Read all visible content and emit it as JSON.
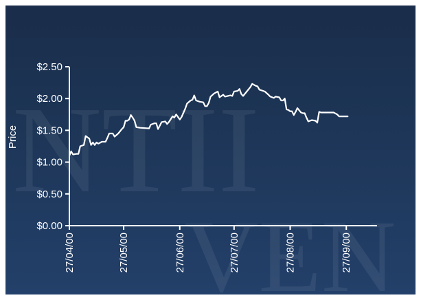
{
  "chart_data": {
    "type": "line",
    "ylabel": "Price",
    "xlabel": "",
    "ylim": [
      0,
      2.5
    ],
    "y_ticks": [
      {
        "value": 2.5,
        "label": "$2.50"
      },
      {
        "value": 2.0,
        "label": "$2.00"
      },
      {
        "value": 1.5,
        "label": "$1.50"
      },
      {
        "value": 1.0,
        "label": "$1.00"
      },
      {
        "value": 0.5,
        "label": "$0.50"
      },
      {
        "value": 0.0,
        "label": "$0.00"
      }
    ],
    "x_ticks": [
      {
        "date": "2000-04-27",
        "label": "27/04/00"
      },
      {
        "date": "2000-05-27",
        "label": "27/05/00"
      },
      {
        "date": "2000-06-27",
        "label": "27/06/00"
      },
      {
        "date": "2000-07-27",
        "label": "27/07/00"
      },
      {
        "date": "2000-08-27",
        "label": "27/08/00"
      },
      {
        "date": "2000-09-27",
        "label": "27/09/00"
      }
    ],
    "xlim": [
      "2000-04-27",
      "2000-10-14"
    ],
    "grid": false,
    "series": [
      {
        "color": "#ffffff",
        "points": [
          [
            "2000-04-27",
            1.1
          ],
          [
            "2000-04-28",
            1.17
          ],
          [
            "2000-04-29",
            1.12
          ],
          [
            "2000-05-01",
            1.13
          ],
          [
            "2000-05-02",
            1.13
          ],
          [
            "2000-05-03",
            1.25
          ],
          [
            "2000-05-05",
            1.27
          ],
          [
            "2000-05-06",
            1.41
          ],
          [
            "2000-05-07",
            1.39
          ],
          [
            "2000-05-08",
            1.37
          ],
          [
            "2000-05-09",
            1.27
          ],
          [
            "2000-05-10",
            1.31
          ],
          [
            "2000-05-11",
            1.27
          ],
          [
            "2000-05-12",
            1.31
          ],
          [
            "2000-05-13",
            1.29
          ],
          [
            "2000-05-15",
            1.32
          ],
          [
            "2000-05-17",
            1.32
          ],
          [
            "2000-05-18",
            1.38
          ],
          [
            "2000-05-19",
            1.45
          ],
          [
            "2000-05-21",
            1.45
          ],
          [
            "2000-05-22",
            1.4
          ],
          [
            "2000-05-24",
            1.45
          ],
          [
            "2000-05-26",
            1.52
          ],
          [
            "2000-05-27",
            1.55
          ],
          [
            "2000-05-28",
            1.65
          ],
          [
            "2000-05-29",
            1.65
          ],
          [
            "2000-05-30",
            1.67
          ],
          [
            "2000-05-31",
            1.74
          ],
          [
            "2000-06-01",
            1.7
          ],
          [
            "2000-06-02",
            1.65
          ],
          [
            "2000-06-03",
            1.55
          ],
          [
            "2000-06-05",
            1.54
          ],
          [
            "2000-06-10",
            1.53
          ],
          [
            "2000-06-11",
            1.59
          ],
          [
            "2000-06-13",
            1.61
          ],
          [
            "2000-06-14",
            1.61
          ],
          [
            "2000-06-15",
            1.52
          ],
          [
            "2000-06-17",
            1.63
          ],
          [
            "2000-06-19",
            1.64
          ],
          [
            "2000-06-20",
            1.6
          ],
          [
            "2000-06-21",
            1.63
          ],
          [
            "2000-06-23",
            1.72
          ],
          [
            "2000-06-24",
            1.7
          ],
          [
            "2000-06-25",
            1.75
          ],
          [
            "2000-06-27",
            1.67
          ],
          [
            "2000-06-28",
            1.71
          ],
          [
            "2000-06-30",
            1.84
          ],
          [
            "2000-07-01",
            1.92
          ],
          [
            "2000-07-03",
            1.97
          ],
          [
            "2000-07-04",
            1.98
          ],
          [
            "2000-07-05",
            2.05
          ],
          [
            "2000-07-06",
            1.97
          ],
          [
            "2000-07-08",
            1.95
          ],
          [
            "2000-07-10",
            1.94
          ],
          [
            "2000-07-11",
            1.88
          ],
          [
            "2000-07-12",
            1.88
          ],
          [
            "2000-07-13",
            1.93
          ],
          [
            "2000-07-14",
            2.03
          ],
          [
            "2000-07-16",
            2.08
          ],
          [
            "2000-07-18",
            2.11
          ],
          [
            "2000-07-19",
            2.02
          ],
          [
            "2000-07-21",
            2.06
          ],
          [
            "2000-07-22",
            2.03
          ],
          [
            "2000-07-25",
            2.05
          ],
          [
            "2000-07-26",
            2.04
          ],
          [
            "2000-07-27",
            2.11
          ],
          [
            "2000-07-29",
            2.12
          ],
          [
            "2000-07-30",
            2.15
          ],
          [
            "2000-07-31",
            2.07
          ],
          [
            "2000-08-01",
            2.04
          ],
          [
            "2000-08-03",
            2.11
          ],
          [
            "2000-08-05",
            2.18
          ],
          [
            "2000-08-06",
            2.23
          ],
          [
            "2000-08-08",
            2.2
          ],
          [
            "2000-08-09",
            2.19
          ],
          [
            "2000-08-10",
            2.14
          ],
          [
            "2000-08-12",
            2.12
          ],
          [
            "2000-08-13",
            2.11
          ],
          [
            "2000-08-15",
            2.06
          ],
          [
            "2000-08-16",
            2.03
          ],
          [
            "2000-08-18",
            2.01
          ],
          [
            "2000-08-19",
            2.03
          ],
          [
            "2000-08-21",
            2.02
          ],
          [
            "2000-08-22",
            1.97
          ],
          [
            "2000-08-23",
            1.97
          ],
          [
            "2000-08-24",
            2.0
          ],
          [
            "2000-08-25",
            1.83
          ],
          [
            "2000-08-26",
            1.82
          ],
          [
            "2000-08-27",
            1.8
          ],
          [
            "2000-08-28",
            1.8
          ],
          [
            "2000-08-29",
            1.74
          ],
          [
            "2000-08-30",
            1.79
          ],
          [
            "2000-08-31",
            1.85
          ],
          [
            "2000-09-02",
            1.78
          ],
          [
            "2000-09-03",
            1.77
          ],
          [
            "2000-09-04",
            1.77
          ],
          [
            "2000-09-05",
            1.7
          ],
          [
            "2000-09-06",
            1.64
          ],
          [
            "2000-09-07",
            1.65
          ],
          [
            "2000-09-08",
            1.66
          ],
          [
            "2000-09-10",
            1.65
          ],
          [
            "2000-09-11",
            1.62
          ],
          [
            "2000-09-12",
            1.79
          ],
          [
            "2000-09-13",
            1.78
          ],
          [
            "2000-09-17",
            1.78
          ],
          [
            "2000-09-20",
            1.78
          ],
          [
            "2000-09-22",
            1.75
          ],
          [
            "2000-09-23",
            1.72
          ],
          [
            "2000-09-28",
            1.72
          ]
        ]
      }
    ]
  },
  "watermark": {
    "row1": "NTII",
    "row2": "VEN"
  }
}
